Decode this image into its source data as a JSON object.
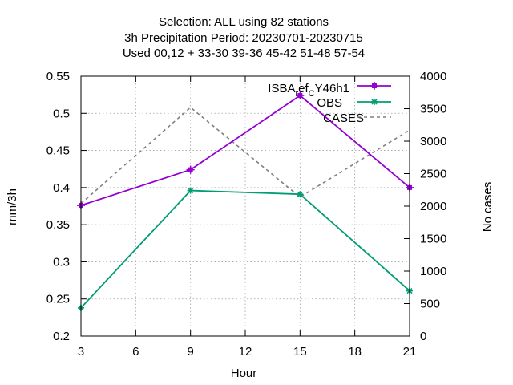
{
  "chart_data": {
    "type": "line",
    "title_lines": [
      "Selection: ALL using    82 stations",
      "3h Precipitation    Period: 20230701-20230715",
      "Used  00,12  + 33-30 39-36 45-42 51-48 57-54"
    ],
    "xlabel": "Hour",
    "ylabel": "mm/3h",
    "y2label": "No cases",
    "x": [
      3,
      9,
      15,
      21
    ],
    "xticks": [
      "3",
      "6",
      "9",
      "12",
      "15",
      "18",
      "21"
    ],
    "xlim": [
      3,
      21
    ],
    "ylim": [
      0.2,
      0.55
    ],
    "yticks": [
      "0.2",
      "0.25",
      "0.3",
      "0.35",
      "0.4",
      "0.45",
      "0.5",
      "0.55"
    ],
    "y2lim": [
      0,
      4000
    ],
    "y2ticks": [
      "0",
      "500",
      "1000",
      "1500",
      "2000",
      "2500",
      "3000",
      "3500",
      "4000"
    ],
    "grid": true,
    "legend_position": "top-right",
    "series": [
      {
        "name": "ISBA_ref_CY46h1",
        "legend_main": "ISBA",
        "legend_sub1": "r",
        "legend_mid": "ef",
        "legend_sub2": "C",
        "legend_tail": "Y46h1",
        "axis": "left",
        "color": "#9400d3",
        "style": "solid",
        "marker": "plus-square",
        "values": [
          0.376,
          0.424,
          0.524,
          0.4
        ]
      },
      {
        "name": "OBS",
        "axis": "left",
        "color": "#009e73",
        "style": "solid",
        "marker": "asterisk",
        "values": [
          0.238,
          0.396,
          0.391,
          0.261
        ]
      },
      {
        "name": "CASES",
        "axis": "right",
        "color": "#808080",
        "style": "dashed",
        "marker": "none",
        "values": [
          2040,
          3520,
          2140,
          3170
        ]
      }
    ]
  }
}
